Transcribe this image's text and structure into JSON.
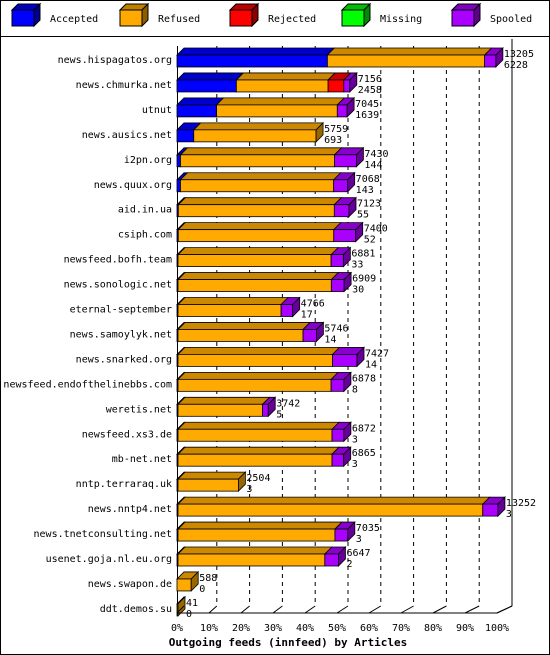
{
  "chart_data": {
    "type": "bar",
    "orientation": "horizontal",
    "stacked": true,
    "title": "",
    "xlabel": "Outgoing feeds (innfeed) by Articles",
    "ylabel": "",
    "x_ticks": [
      "0%",
      "10%",
      "20%",
      "30%",
      "40%",
      "50%",
      "60%",
      "70%",
      "80%",
      "90%",
      "100%"
    ],
    "xlim": [
      0,
      100
    ],
    "grid": "vertical dashed",
    "legend_position": "top",
    "legend": [
      {
        "name": "Accepted",
        "color": "#0000ff"
      },
      {
        "name": "Refused",
        "color": "#ffaa00"
      },
      {
        "name": "Rejected",
        "color": "#ff0000"
      },
      {
        "name": "Missing",
        "color": "#00ff00"
      },
      {
        "name": "Spooled",
        "color": "#aa00ff"
      }
    ],
    "max_total": 13252,
    "categories": [
      {
        "name": "news.hispagatos.org",
        "total": "13205",
        "accepted_label": "6228",
        "accepted": 6228,
        "refused": 6510,
        "rejected": 0,
        "missing": 0,
        "spooled": 467
      },
      {
        "name": "news.chmurka.net",
        "total": "7156",
        "accepted_label": "2458",
        "accepted": 2458,
        "refused": 3800,
        "rejected": 650,
        "missing": 0,
        "spooled": 248
      },
      {
        "name": "utnut",
        "total": "7045",
        "accepted_label": "1639",
        "accepted": 1639,
        "refused": 5000,
        "rejected": 0,
        "missing": 0,
        "spooled": 406
      },
      {
        "name": "news.ausics.net",
        "total": "5759",
        "accepted_label": "693",
        "accepted": 693,
        "refused": 5066,
        "rejected": 0,
        "missing": 0,
        "spooled": 0
      },
      {
        "name": "i2pn.org",
        "total": "7430",
        "accepted_label": "144",
        "accepted": 144,
        "refused": 6380,
        "rejected": 0,
        "missing": 0,
        "spooled": 906
      },
      {
        "name": "news.quux.org",
        "total": "7068",
        "accepted_label": "143",
        "accepted": 143,
        "refused": 6345,
        "rejected": 0,
        "missing": 0,
        "spooled": 580
      },
      {
        "name": "aid.in.ua",
        "total": "7123",
        "accepted_label": "55",
        "accepted": 55,
        "refused": 6460,
        "rejected": 0,
        "missing": 0,
        "spooled": 608
      },
      {
        "name": "csiph.com",
        "total": "7400",
        "accepted_label": "52",
        "accepted": 52,
        "refused": 6440,
        "rejected": 0,
        "missing": 0,
        "spooled": 908
      },
      {
        "name": "newsfeed.bofh.team",
        "total": "6881",
        "accepted_label": "33",
        "accepted": 33,
        "refused": 6340,
        "rejected": 0,
        "missing": 0,
        "spooled": 508
      },
      {
        "name": "news.sonologic.net",
        "total": "6909",
        "accepted_label": "30",
        "accepted": 30,
        "refused": 6350,
        "rejected": 0,
        "missing": 0,
        "spooled": 529
      },
      {
        "name": "eternal-september",
        "total": "4766",
        "accepted_label": "17",
        "accepted": 17,
        "refused": 4270,
        "rejected": 0,
        "missing": 0,
        "spooled": 479
      },
      {
        "name": "news.samoylyk.net",
        "total": "5746",
        "accepted_label": "14",
        "accepted": 14,
        "refused": 5180,
        "rejected": 0,
        "missing": 0,
        "spooled": 552
      },
      {
        "name": "news.snarked.org",
        "total": "7427",
        "accepted_label": "14",
        "accepted": 14,
        "refused": 6400,
        "rejected": 0,
        "missing": 0,
        "spooled": 1013
      },
      {
        "name": "newsfeed.endofthelinebbs.com",
        "total": "6878",
        "accepted_label": "8",
        "accepted": 8,
        "refused": 6340,
        "rejected": 0,
        "missing": 0,
        "spooled": 530
      },
      {
        "name": "weretis.net",
        "total": "3742",
        "accepted_label": "5",
        "accepted": 5,
        "refused": 3500,
        "rejected": 0,
        "missing": 0,
        "spooled": 237
      },
      {
        "name": "newsfeed.xs3.de",
        "total": "6872",
        "accepted_label": "3",
        "accepted": 3,
        "refused": 6380,
        "rejected": 0,
        "missing": 0,
        "spooled": 489
      },
      {
        "name": "mb-net.net",
        "total": "6865",
        "accepted_label": "3",
        "accepted": 3,
        "refused": 6380,
        "rejected": 0,
        "missing": 0,
        "spooled": 482
      },
      {
        "name": "nntp.terraraq.uk",
        "total": "2504",
        "accepted_label": "3",
        "accepted": 3,
        "refused": 2501,
        "rejected": 0,
        "missing": 0,
        "spooled": 0
      },
      {
        "name": "news.nntp4.net",
        "total": "13252",
        "accepted_label": "3",
        "accepted": 3,
        "refused": 12620,
        "rejected": 0,
        "missing": 0,
        "spooled": 629
      },
      {
        "name": "news.tnetconsulting.net",
        "total": "7035",
        "accepted_label": "3",
        "accepted": 3,
        "refused": 6500,
        "rejected": 0,
        "missing": 0,
        "spooled": 532
      },
      {
        "name": "usenet.goja.nl.eu.org",
        "total": "6647",
        "accepted_label": "2",
        "accepted": 2,
        "refused": 6080,
        "rejected": 0,
        "missing": 0,
        "spooled": 565
      },
      {
        "name": "news.swapon.de",
        "total": "588",
        "accepted_label": "0",
        "accepted": 0,
        "refused": 588,
        "rejected": 0,
        "missing": 0,
        "spooled": 0
      },
      {
        "name": "ddt.demos.su",
        "total": "41",
        "accepted_label": "0",
        "accepted": 0,
        "refused": 41,
        "rejected": 0,
        "missing": 0,
        "spooled": 0
      }
    ]
  }
}
